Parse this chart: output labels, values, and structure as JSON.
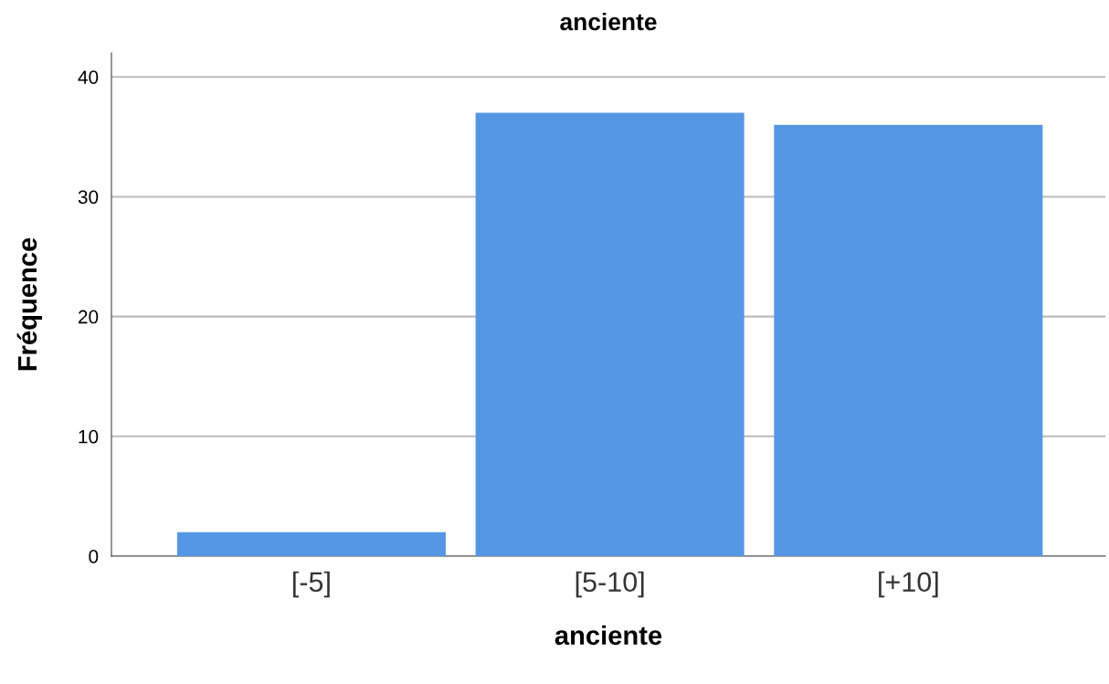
{
  "chart_data": {
    "type": "bar",
    "title": "anciente",
    "xlabel": "anciente",
    "ylabel": "Fréquence",
    "categories": [
      "[-5]",
      "[5-10]",
      "[+10]"
    ],
    "values": [
      2,
      37,
      36
    ],
    "color": "#5597e3",
    "ylim": [
      0,
      42
    ],
    "yticks": [
      0,
      10,
      20,
      30,
      40
    ],
    "grid": "y"
  }
}
